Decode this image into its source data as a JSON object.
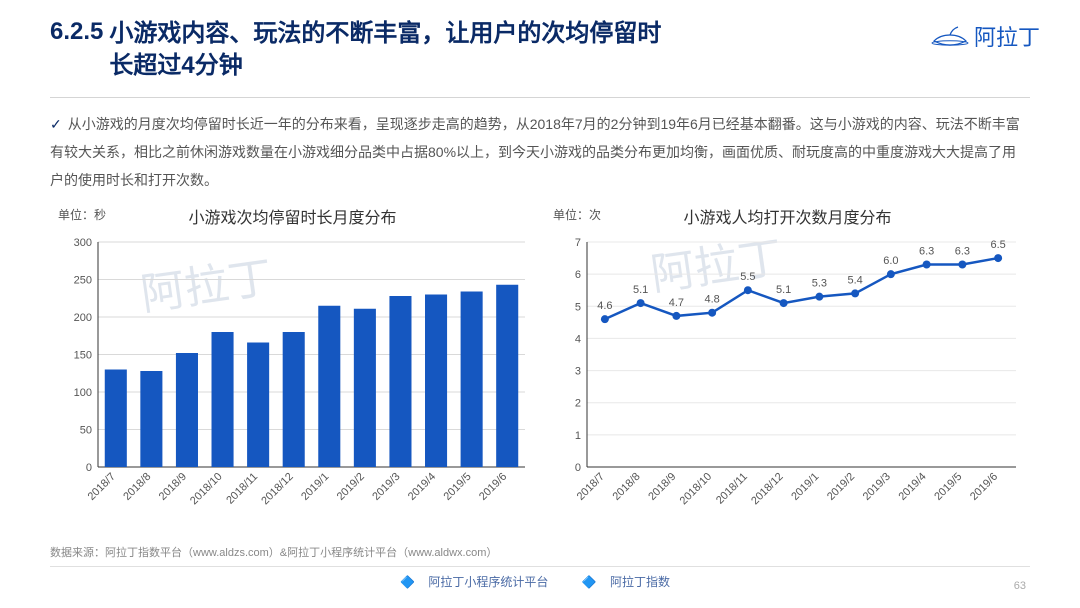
{
  "header": {
    "section_number": "6.2.5",
    "title_line1": "小游戏内容、玩法的不断丰富，让用户的次均停留时",
    "title_line2": "长超过4分钟",
    "brand": "阿拉丁"
  },
  "watermark_text": "阿拉丁",
  "body": {
    "paragraph": "从小游戏的月度次均停留时长近一年的分布来看，呈现逐步走高的趋势，从2018年7月的2分钟到19年6月已经基本翻番。这与小游戏的内容、玩法不断丰富有较大关系，相比之前休闲游戏数量在小游戏细分品类中占据80%以上，到今天小游戏的品类分布更加均衡，画面优质、耐玩度高的中重度游戏大大提高了用户的使用时长和打开次数。"
  },
  "chart_bar": {
    "type": "bar",
    "title": "小游戏次均停留时长月度分布",
    "unit_label": "单位：秒",
    "categories": [
      "2018/7",
      "2018/8",
      "2018/9",
      "2018/10",
      "2018/11",
      "2018/12",
      "2019/1",
      "2019/2",
      "2019/3",
      "2019/4",
      "2019/5",
      "2019/6"
    ],
    "values": [
      130,
      128,
      152,
      180,
      166,
      180,
      215,
      211,
      228,
      230,
      234,
      243
    ],
    "bar_color": "#1557c0",
    "axis_color": "#333333",
    "grid_color": "#d9d9d9",
    "label_color": "#555555",
    "label_fontsize": 11,
    "ylim": [
      0,
      300
    ],
    "ytick_step": 50,
    "bar_width": 0.62,
    "background_color": "#ffffff"
  },
  "chart_line": {
    "type": "line",
    "title": "小游戏人均打开次数月度分布",
    "unit_label": "单位：次",
    "categories": [
      "2018/7",
      "2018/8",
      "2018/9",
      "2018/10",
      "2018/11",
      "2018/12",
      "2019/1",
      "2019/2",
      "2019/3",
      "2019/4",
      "2019/5",
      "2019/6"
    ],
    "values": [
      4.6,
      5.1,
      4.7,
      4.8,
      5.5,
      5.1,
      5.3,
      5.4,
      6.0,
      6.3,
      6.3,
      6.5
    ],
    "line_color": "#1557c0",
    "marker_color": "#1557c0",
    "marker_style": "circle",
    "marker_size": 4,
    "line_width": 2.5,
    "axis_color": "#333333",
    "grid_color": "#e8e8e8",
    "label_color": "#555555",
    "label_fontsize": 11,
    "value_label_fontsize": 11,
    "ylim": [
      0,
      7
    ],
    "ytick_step": 1,
    "background_color": "#ffffff"
  },
  "footer": {
    "source": "数据来源：阿拉丁指数平台（www.aldzs.com）&阿拉丁小程序统计平台（www.aldwx.com）",
    "logo1": "阿拉丁小程序统计平台",
    "logo2": "阿拉丁指数",
    "page_number": "63"
  }
}
